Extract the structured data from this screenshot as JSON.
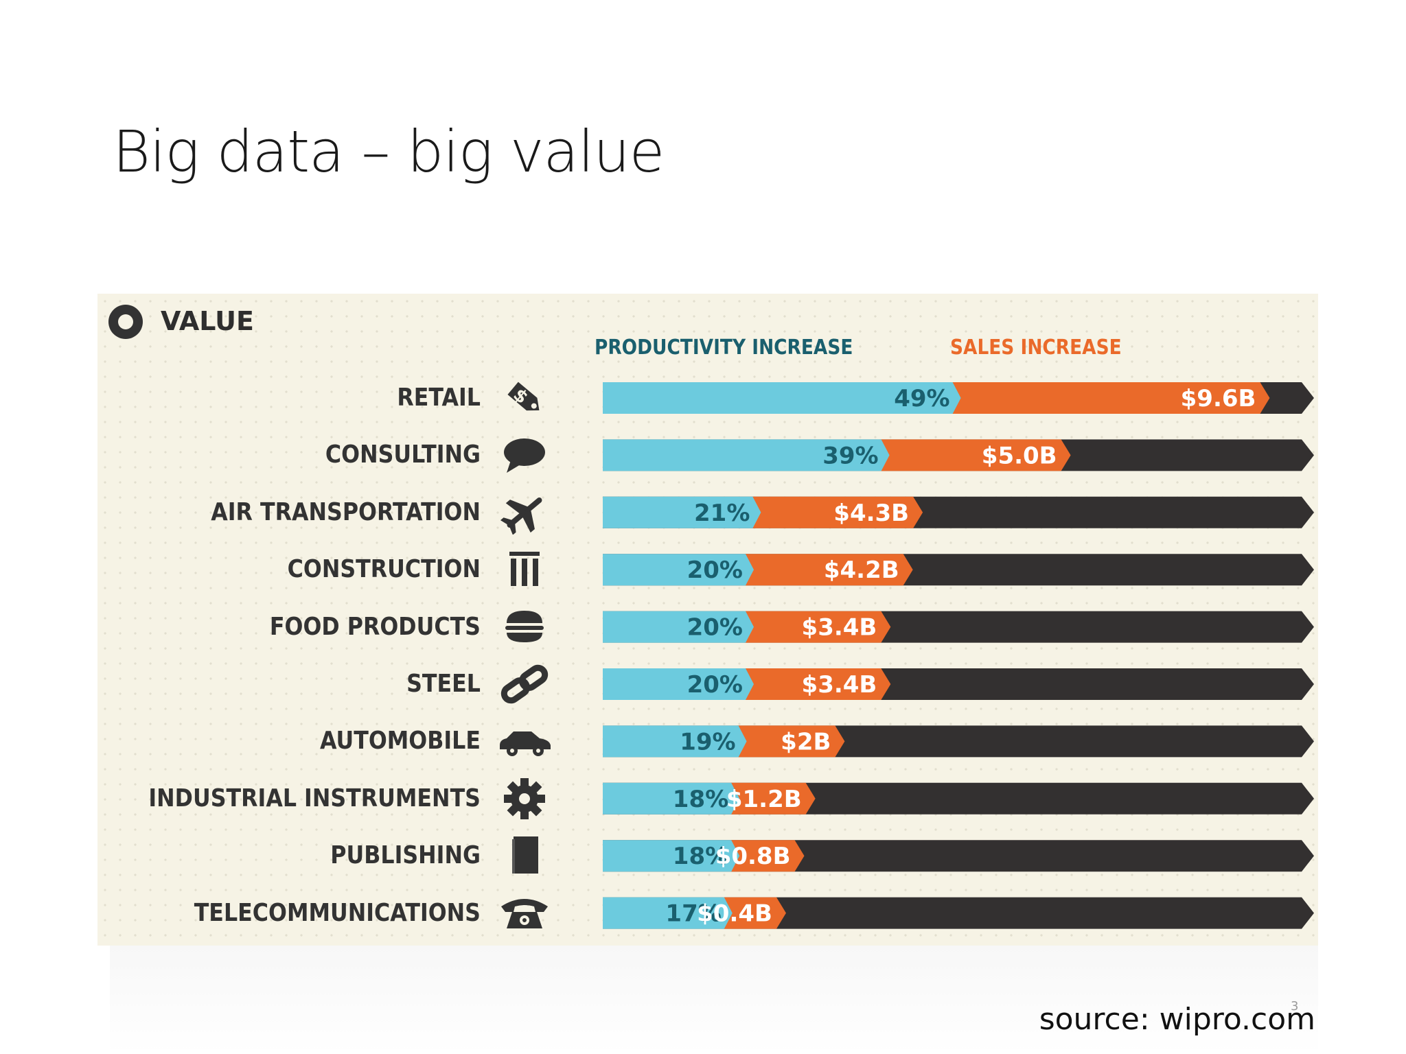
{
  "slide": {
    "title": "Big data – big value",
    "source": "source: wipro.com",
    "page_number": "3"
  },
  "infographic": {
    "heading": "VALUE",
    "colors": {
      "productivity": "#6ccbde",
      "sales": "#ea6a2a",
      "track": "#333030",
      "productivity_text": "#1a5f6e",
      "sales_text": "#ffffff"
    }
  },
  "chart_data": {
    "type": "bar",
    "stacked": true,
    "orientation": "horizontal",
    "title": "VALUE",
    "legend": [
      "PRODUCTIVITY INCREASE",
      "SALES INCREASE"
    ],
    "legend_placement": "top",
    "categories": [
      "RETAIL",
      "CONSULTING",
      "AIR TRANSPORTATION",
      "CONSTRUCTION",
      "FOOD PRODUCTS",
      "STEEL",
      "AUTOMOBILE",
      "INDUSTRIAL INSTRUMENTS",
      "PUBLISHING",
      "TELECOMMUNICATIONS"
    ],
    "icons": [
      "price-tag-icon",
      "speech-bubble-icon",
      "airplane-icon",
      "columns-icon",
      "burger-icon",
      "chain-link-icon",
      "car-icon",
      "gear-icon",
      "book-icon",
      "telephone-icon"
    ],
    "series": [
      {
        "name": "PRODUCTIVITY INCREASE",
        "unit": "%",
        "values": [
          49,
          39,
          21,
          20,
          20,
          20,
          19,
          18,
          18,
          17
        ],
        "labels": [
          "49%",
          "39%",
          "21%",
          "20%",
          "20%",
          "20%",
          "19%",
          "18%",
          "18%",
          "17%"
        ]
      },
      {
        "name": "SALES INCREASE",
        "unit": "$B",
        "values": [
          9.6,
          5.0,
          4.3,
          4.2,
          3.4,
          3.4,
          2.0,
          1.2,
          0.8,
          0.4
        ],
        "labels": [
          "$9.6B",
          "$5.0B",
          "$4.3B",
          "$4.2B",
          "$3.4B",
          "$3.4B",
          "$2B",
          "$1.2B",
          "$0.8B",
          "$0.4B"
        ]
      }
    ]
  }
}
